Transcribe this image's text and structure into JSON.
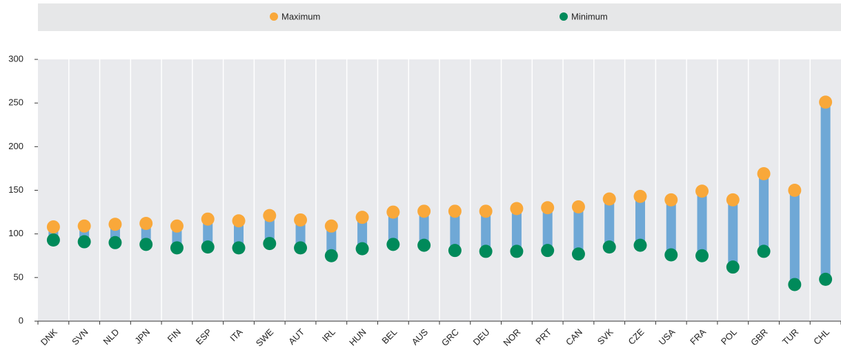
{
  "chart_data": {
    "type": "dumbbell",
    "categories": [
      "DNK",
      "SVN",
      "NLD",
      "JPN",
      "FIN",
      "ESP",
      "ITA",
      "SWE",
      "AUT",
      "IRL",
      "HUN",
      "BEL",
      "AUS",
      "GRC",
      "DEU",
      "NOR",
      "PRT",
      "CAN",
      "SVK",
      "CZE",
      "USA",
      "FRA",
      "POL",
      "GBR",
      "TUR",
      "CHL"
    ],
    "series": [
      {
        "name": "Maximum",
        "color": "#f9a83a",
        "values": [
          108,
          109,
          111,
          112,
          109,
          117,
          115,
          121,
          116,
          109,
          119,
          125,
          126,
          126,
          126,
          129,
          130,
          131,
          140,
          143,
          139,
          149,
          139,
          169,
          150,
          251
        ]
      },
      {
        "name": "Minimum",
        "color": "#008a5a",
        "values": [
          93,
          91,
          90,
          88,
          84,
          85,
          84,
          89,
          84,
          75,
          83,
          88,
          87,
          81,
          80,
          80,
          81,
          77,
          85,
          87,
          76,
          75,
          62,
          80,
          42,
          48
        ]
      }
    ],
    "range_color": "#6fa8d6",
    "ylim": [
      0,
      300
    ],
    "yticks": [
      0,
      50,
      100,
      150,
      200,
      250,
      300
    ]
  }
}
